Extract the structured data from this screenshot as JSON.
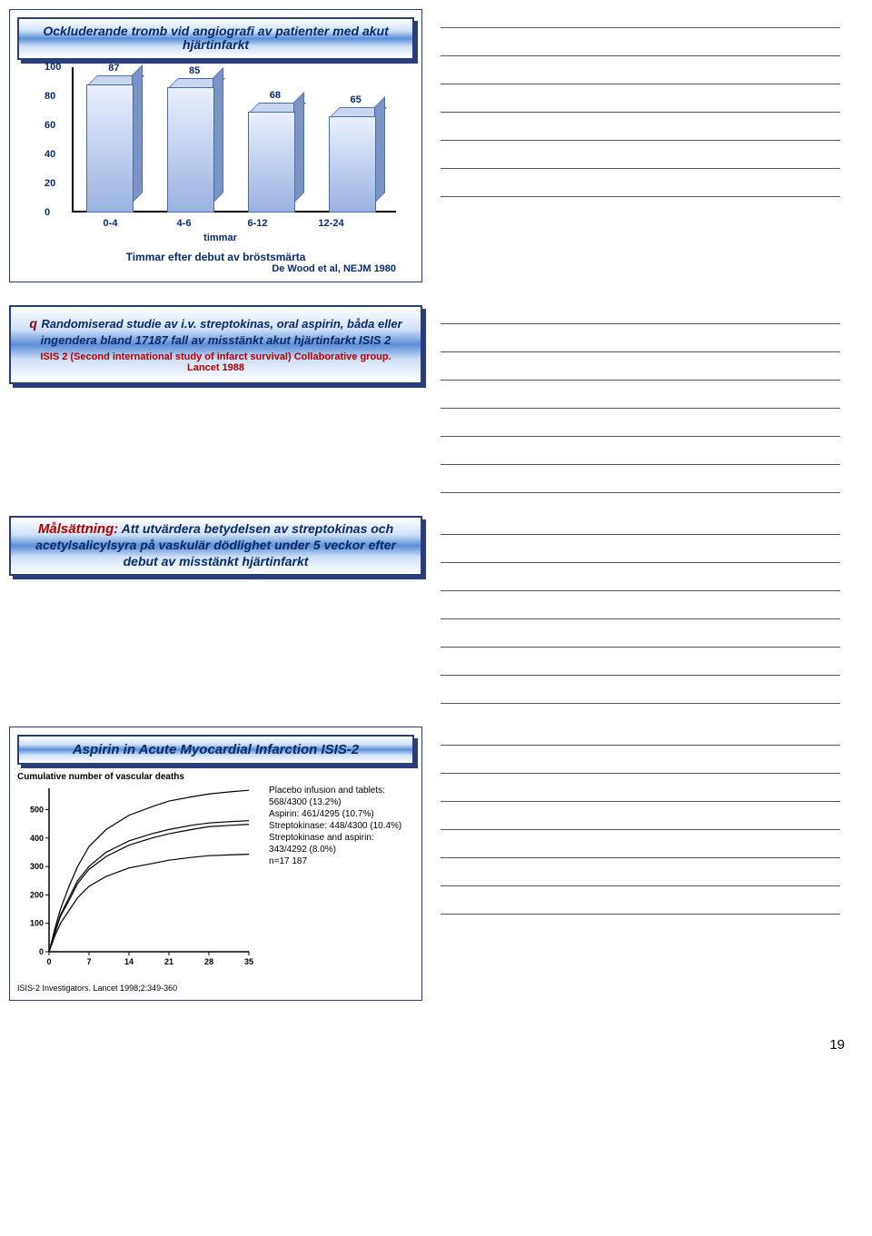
{
  "slide1": {
    "title": "Ockluderande tromb vid angiografi av patienter med akut hjärtinfarkt",
    "chart": {
      "type": "bar",
      "yticks": [
        0,
        20,
        40,
        60,
        80,
        100
      ],
      "categories": [
        "0-4",
        "4-6",
        "6-12",
        "12-24"
      ],
      "values": [
        87,
        85,
        68,
        65
      ],
      "bar_colors": [
        "#9ab2e0",
        "#9ab2e0",
        "#9ab2e0",
        "#9ab2e0"
      ],
      "x_unit": "timmar",
      "caption": "Timmar efter debut av bröstsmärta",
      "source": "De Wood et al, NEJM 1980"
    }
  },
  "slide2": {
    "bullet": "q",
    "title_a": "Randomiserad studie av i.v. streptokinas, oral aspirin, båda eller ingendera bland 17187 fall av misstänkt akut hjärtinfarkt ISIS 2",
    "cite": "ISIS 2 (Second international study of infarct survival) Collaborative group. Lancet 1988"
  },
  "slide3": {
    "lead": "Målsättning:",
    "body": " Att utvärdera betydelsen av streptokinas och acetylsalicylsyra på vaskulär dödlighet under 5 veckor efter debut av misstänkt hjärtinfarkt"
  },
  "slide4": {
    "banner": "Aspirin in Acute Myocardial Infarction ISIS-2",
    "ytitle": "Cumulative number of vascular deaths",
    "chart": {
      "type": "line",
      "x_ticks": [
        0,
        7,
        14,
        21,
        28,
        35
      ],
      "y_ticks": [
        0,
        100,
        200,
        300,
        400,
        500
      ],
      "ymax": 575,
      "series": [
        {
          "key": "placebo",
          "points": [
            [
              0,
              0
            ],
            [
              1,
              80
            ],
            [
              2,
              150
            ],
            [
              3.5,
              230
            ],
            [
              5,
              300
            ],
            [
              7,
              370
            ],
            [
              10,
              430
            ],
            [
              14,
              480
            ],
            [
              18,
              510
            ],
            [
              21,
              530
            ],
            [
              25,
              545
            ],
            [
              28,
              555
            ],
            [
              32,
              563
            ],
            [
              35,
              568
            ]
          ]
        },
        {
          "key": "aspirin",
          "points": [
            [
              0,
              0
            ],
            [
              1,
              70
            ],
            [
              2,
              130
            ],
            [
              3.5,
              190
            ],
            [
              5,
              250
            ],
            [
              7,
              300
            ],
            [
              10,
              350
            ],
            [
              14,
              390
            ],
            [
              18,
              415
            ],
            [
              21,
              430
            ],
            [
              25,
              445
            ],
            [
              28,
              453
            ],
            [
              32,
              458
            ],
            [
              35,
              461
            ]
          ]
        },
        {
          "key": "sk",
          "points": [
            [
              0,
              0
            ],
            [
              1,
              65
            ],
            [
              2,
              125
            ],
            [
              3.5,
              180
            ],
            [
              5,
              240
            ],
            [
              7,
              290
            ],
            [
              10,
              335
            ],
            [
              14,
              375
            ],
            [
              18,
              400
            ],
            [
              21,
              415
            ],
            [
              25,
              430
            ],
            [
              28,
              440
            ],
            [
              32,
              445
            ],
            [
              35,
              448
            ]
          ]
        },
        {
          "key": "both",
          "points": [
            [
              0,
              0
            ],
            [
              1,
              55
            ],
            [
              2,
              100
            ],
            [
              3.5,
              145
            ],
            [
              5,
              190
            ],
            [
              7,
              230
            ],
            [
              10,
              265
            ],
            [
              14,
              295
            ],
            [
              18,
              310
            ],
            [
              21,
              322
            ],
            [
              25,
              332
            ],
            [
              28,
              338
            ],
            [
              32,
              341
            ],
            [
              35,
              343
            ]
          ]
        }
      ]
    },
    "legend": [
      "Placebo infusion and tablets: 568/4300 (13.2%)",
      "Aspirin: 461/4295 (10.7%)",
      "Streptokinase: 448/4300 (10.4%)",
      "Streptokinase and aspirin: 343/4292 (8.0%)",
      "n=17 187"
    ],
    "cite": "ISIS-2 Investigators. Lancet 1998;2:349-360"
  },
  "page_number": "19",
  "lines_per_slide": 7
}
